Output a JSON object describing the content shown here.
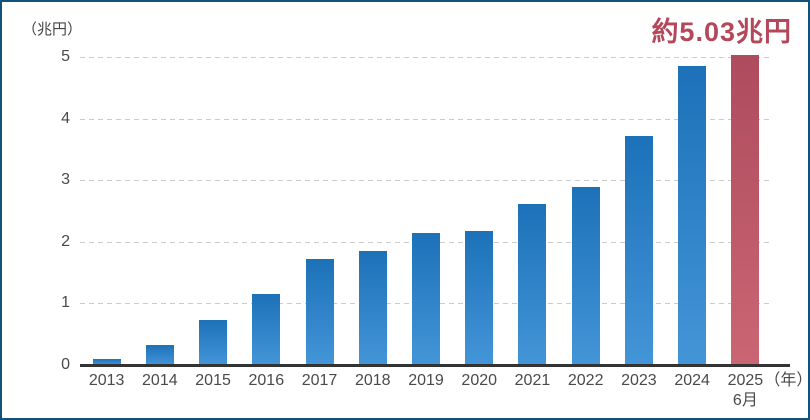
{
  "chart_data": {
    "type": "bar",
    "title": "",
    "unit_label": "（兆円）",
    "annotation": "約5.03兆円",
    "categories": [
      "2013",
      "2014",
      "2015",
      "2016",
      "2017",
      "2018",
      "2019",
      "2020",
      "2021",
      "2022",
      "2023",
      "2024",
      "2025"
    ],
    "values": [
      0.1,
      0.32,
      0.73,
      1.15,
      1.72,
      1.85,
      2.15,
      2.18,
      2.62,
      2.89,
      3.72,
      4.85,
      5.03
    ],
    "highlight_index": 12,
    "x_axis_suffix": "（年）",
    "highlight_sub_label": "6月",
    "xlabel": "年",
    "ylabel": "兆円",
    "yticks": [
      0,
      1,
      2,
      3,
      4,
      5
    ],
    "ylim": [
      0,
      5
    ],
    "grid": "horizontal-dashed",
    "legend": "none",
    "colors": {
      "bar_top": "#1c71b8",
      "bar_bottom": "#4495d8",
      "highlight_top": "#ae4b5d",
      "highlight_bottom": "#ca6674",
      "annotation_text": "#b4485a",
      "frame_border": "#10527a",
      "axis_line": "#333333",
      "gridline": "#cccccc",
      "tick_text": "#4a4a4a"
    }
  }
}
